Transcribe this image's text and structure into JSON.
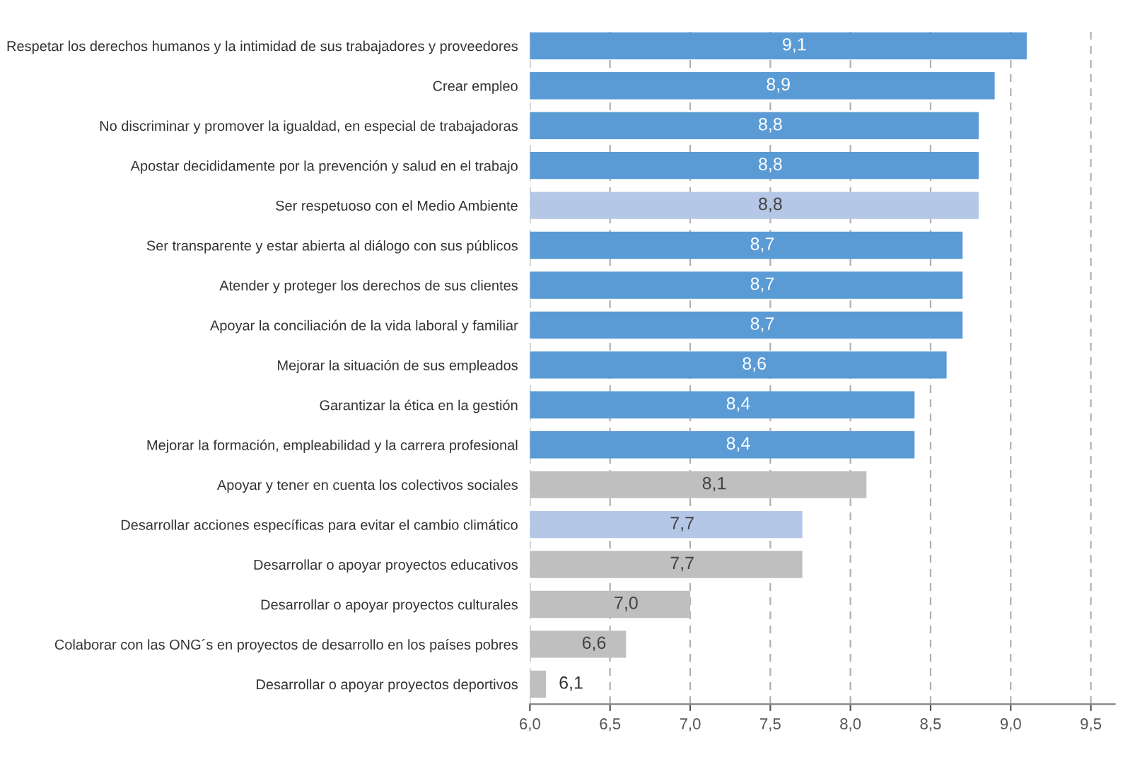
{
  "chart_data": {
    "type": "bar",
    "orientation": "horizontal",
    "categories": [
      "Respetar los derechos humanos y la intimidad de sus trabajadores y proveedores",
      "Crear empleo",
      "No discriminar y promover la igualdad, en especial de trabajadoras",
      "Apostar decididamente por la prevención y salud en el trabajo",
      "Ser respetuoso con el Medio Ambiente",
      "Ser transparente y estar abierta al diálogo con sus públicos",
      "Atender y proteger los derechos de sus clientes",
      "Apoyar la conciliación de la vida laboral y familiar",
      "Mejorar la situación de sus empleados",
      "Garantizar la ética en la gestión",
      "Mejorar la formación, empleabilidad y la carrera profesional",
      "Apoyar y tener en cuenta los colectivos sociales",
      "Desarrollar acciones específicas para evitar el cambio climático",
      "Desarrollar o apoyar proyectos educativos",
      "Desarrollar o apoyar proyectos culturales",
      "Colaborar con las ONG´s en proyectos de desarrollo en los países pobres",
      "Desarrollar o apoyar proyectos deportivos"
    ],
    "values": [
      9.1,
      8.9,
      8.8,
      8.8,
      8.8,
      8.7,
      8.7,
      8.7,
      8.6,
      8.4,
      8.4,
      8.1,
      7.7,
      7.7,
      7.0,
      6.6,
      6.1
    ],
    "value_labels": [
      "9,1",
      "8,9",
      "8,8",
      "8,8",
      "8,8",
      "8,7",
      "8,7",
      "8,7",
      "8,6",
      "8,4",
      "8,4",
      "8,1",
      "7,7",
      "7,7",
      "7,0",
      "6,6",
      "6,1"
    ],
    "colors": [
      "#5b9bd5",
      "#5b9bd5",
      "#5b9bd5",
      "#5b9bd5",
      "#b4c7e7",
      "#5b9bd5",
      "#5b9bd5",
      "#5b9bd5",
      "#5b9bd5",
      "#5b9bd5",
      "#5b9bd5",
      "#bfbfbf",
      "#b4c7e7",
      "#bfbfbf",
      "#bfbfbf",
      "#bfbfbf",
      "#bfbfbf"
    ],
    "xlim": [
      6,
      9.65
    ],
    "xticks": [
      {
        "value": 6,
        "label": "6,0"
      },
      {
        "value": 6.5,
        "label": "6,5"
      },
      {
        "value": 7,
        "label": "7,0"
      },
      {
        "value": 7.5,
        "label": "7,5"
      },
      {
        "value": 8,
        "label": "8,0"
      },
      {
        "value": 8.5,
        "label": "8,5"
      },
      {
        "value": 9,
        "label": "9,0"
      },
      {
        "value": 9.5,
        "label": "9,5"
      }
    ],
    "grid": "x"
  }
}
